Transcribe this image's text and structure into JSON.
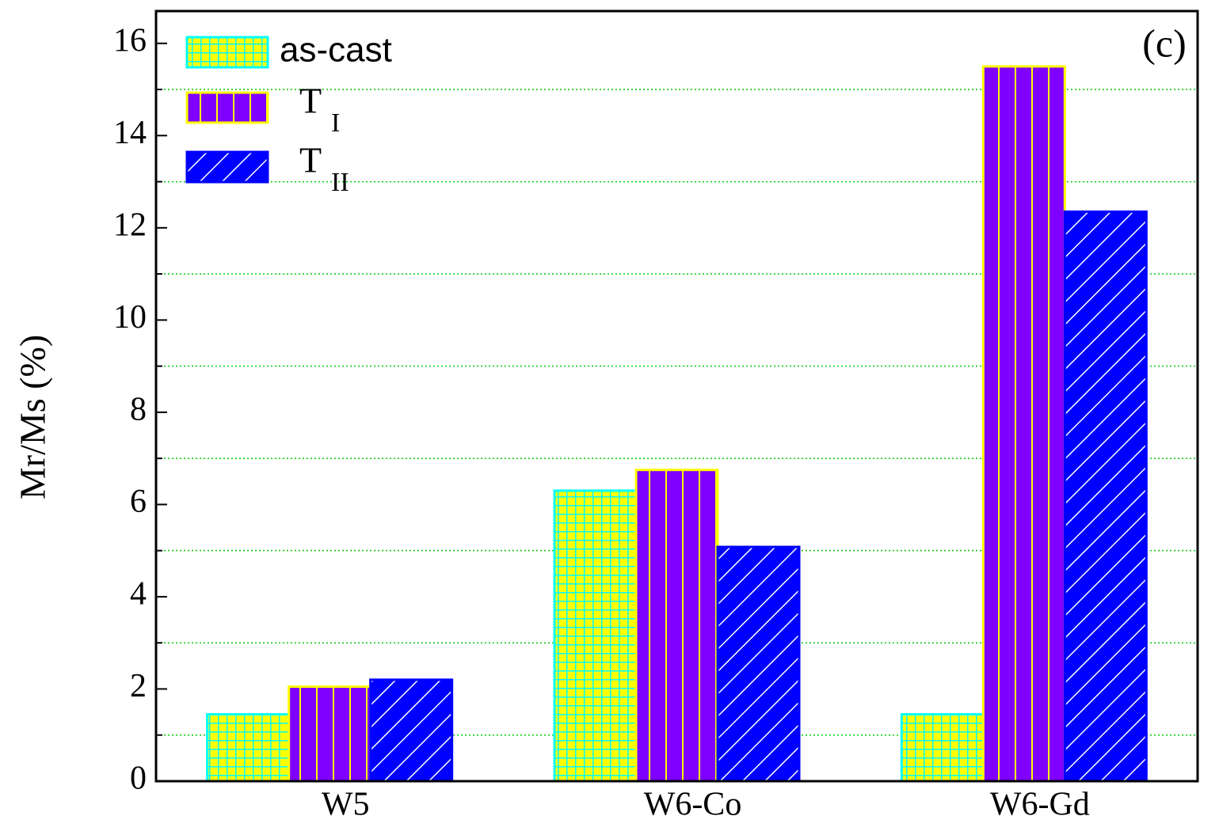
{
  "chart_data": {
    "type": "bar",
    "panel_label": "(c)",
    "y_label": "Mr/Ms (%)",
    "categories": [
      "W5",
      "W6-Co",
      "W6-Gd"
    ],
    "series": [
      {
        "name": "as-cast",
        "color": "#ffff00",
        "edge_color": "#00ffff",
        "hatch": "grid",
        "hatch_color": "#00ffff",
        "values": [
          1.45,
          6.3,
          1.45
        ]
      },
      {
        "name": "T",
        "subscript": "I",
        "color": "#7f00ff",
        "edge_color": "#ffff00",
        "hatch": "vertical",
        "hatch_color": "#ffff00",
        "values": [
          2.05,
          6.75,
          15.5
        ]
      },
      {
        "name": "T",
        "subscript": "II",
        "color": "#0000ff",
        "edge_color": "#0000ff",
        "hatch": "diagonal",
        "hatch_color": "#ffffff",
        "values": [
          2.2,
          5.08,
          12.35
        ]
      }
    ],
    "ylim": [
      0,
      16.7
    ],
    "yticks": [
      0,
      2,
      4,
      6,
      8,
      10,
      12,
      14,
      16
    ],
    "grid_ticks": [
      1,
      3,
      5,
      7,
      9,
      11,
      13,
      15
    ],
    "grid_color": "#00cc00",
    "legend": "upper left"
  }
}
